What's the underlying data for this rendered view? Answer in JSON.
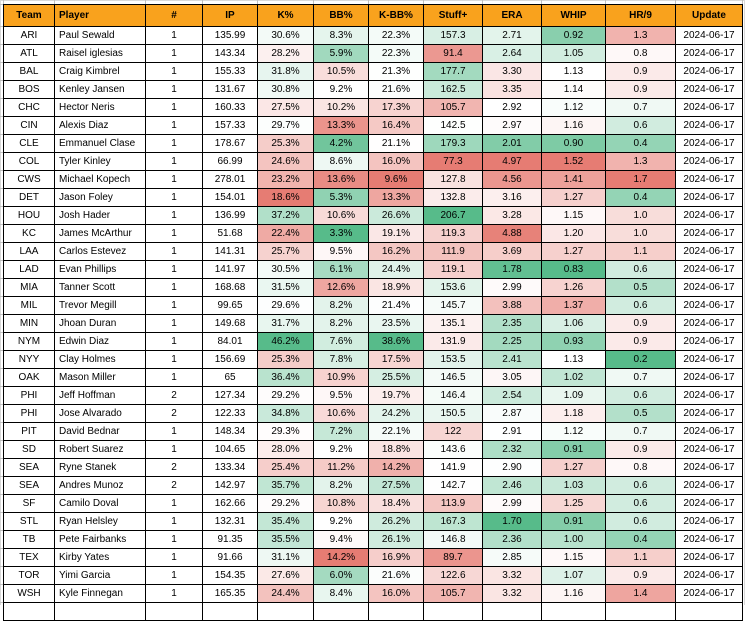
{
  "table": {
    "columns": [
      {
        "key": "team",
        "label": "Team"
      },
      {
        "key": "player",
        "label": "Player"
      },
      {
        "key": "num",
        "label": "#"
      },
      {
        "key": "ip",
        "label": "IP"
      },
      {
        "key": "k-pct",
        "label": "K%",
        "scale": "higher_better"
      },
      {
        "key": "bb-pct",
        "label": "BB%",
        "scale": "lower_better"
      },
      {
        "key": "k-bb-pct",
        "label": "K-BB%",
        "scale": "higher_better"
      },
      {
        "key": "stuff-plus",
        "label": "Stuff+",
        "scale": "higher_better"
      },
      {
        "key": "era",
        "label": "ERA",
        "scale": "lower_better"
      },
      {
        "key": "whip",
        "label": "WHIP",
        "scale": "lower_better"
      },
      {
        "key": "hr9",
        "label": "HR/9",
        "scale": "lower_better"
      },
      {
        "key": "update",
        "label": "Update"
      }
    ],
    "rows": [
      [
        "ARI",
        "Paul Sewald",
        "1",
        "135.99",
        "30.6%",
        "8.3%",
        "22.3%",
        "157.3",
        "2.71",
        "0.92",
        "1.3",
        "2024-06-17"
      ],
      [
        "ATL",
        "Raisel iglesias",
        "1",
        "143.34",
        "28.2%",
        "5.9%",
        "22.3%",
        "91.4",
        "2.64",
        "1.05",
        "0.8",
        "2024-06-17"
      ],
      [
        "BAL",
        "Craig Kimbrel",
        "1",
        "155.33",
        "31.8%",
        "10.5%",
        "21.3%",
        "177.7",
        "3.30",
        "1.13",
        "0.9",
        "2024-06-17"
      ],
      [
        "BOS",
        "Kenley Jansen",
        "1",
        "131.67",
        "30.8%",
        "9.2%",
        "21.6%",
        "162.5",
        "3.35",
        "1.14",
        "0.9",
        "2024-06-17"
      ],
      [
        "CHC",
        "Hector Neris",
        "1",
        "160.33",
        "27.5%",
        "10.2%",
        "17.3%",
        "105.7",
        "2.92",
        "1.12",
        "0.7",
        "2024-06-17"
      ],
      [
        "CIN",
        "Alexis Diaz",
        "1",
        "157.33",
        "29.7%",
        "13.3%",
        "16.4%",
        "142.5",
        "2.97",
        "1.16",
        "0.6",
        "2024-06-17"
      ],
      [
        "CLE",
        "Emmanuel Clase",
        "1",
        "178.67",
        "25.3%",
        "4.2%",
        "21.1%",
        "179.3",
        "2.01",
        "0.90",
        "0.4",
        "2024-06-17"
      ],
      [
        "COL",
        "Tyler Kinley",
        "1",
        "66.99",
        "24.6%",
        "8.6%",
        "16.0%",
        "77.3",
        "4.97",
        "1.52",
        "1.3",
        "2024-06-17"
      ],
      [
        "CWS",
        "Michael Kopech",
        "1",
        "278.01",
        "23.2%",
        "13.6%",
        "9.6%",
        "127.8",
        "4.56",
        "1.41",
        "1.7",
        "2024-06-17"
      ],
      [
        "DET",
        "Jason Foley",
        "1",
        "154.01",
        "18.6%",
        "5.3%",
        "13.3%",
        "132.8",
        "3.16",
        "1.27",
        "0.4",
        "2024-06-17"
      ],
      [
        "HOU",
        "Josh Hader",
        "1",
        "136.99",
        "37.2%",
        "10.6%",
        "26.6%",
        "206.7",
        "3.28",
        "1.15",
        "1.0",
        "2024-06-17"
      ],
      [
        "KC",
        "James McArthur",
        "1",
        "51.68",
        "22.4%",
        "3.3%",
        "19.1%",
        "119.3",
        "4.88",
        "1.20",
        "1.0",
        "2024-06-17"
      ],
      [
        "LAA",
        "Carlos Estevez",
        "1",
        "141.31",
        "25.7%",
        "9.5%",
        "16.2%",
        "111.9",
        "3.69",
        "1.27",
        "1.1",
        "2024-06-17"
      ],
      [
        "LAD",
        "Evan Phillips",
        "1",
        "141.97",
        "30.5%",
        "6.1%",
        "24.4%",
        "119.1",
        "1.78",
        "0.83",
        "0.6",
        "2024-06-17"
      ],
      [
        "MIA",
        "Tanner Scott",
        "1",
        "168.68",
        "31.5%",
        "12.6%",
        "18.9%",
        "153.6",
        "2.99",
        "1.26",
        "0.5",
        "2024-06-17"
      ],
      [
        "MIL",
        "Trevor Megill",
        "1",
        "99.65",
        "29.6%",
        "8.2%",
        "21.4%",
        "145.7",
        "3.88",
        "1.37",
        "0.6",
        "2024-06-17"
      ],
      [
        "MIN",
        "Jhoan Duran",
        "1",
        "149.68",
        "31.7%",
        "8.2%",
        "23.5%",
        "135.1",
        "2.35",
        "1.06",
        "0.9",
        "2024-06-17"
      ],
      [
        "NYM",
        "Edwin Diaz",
        "1",
        "84.01",
        "46.2%",
        "7.6%",
        "38.6%",
        "131.9",
        "2.25",
        "0.93",
        "0.9",
        "2024-06-17"
      ],
      [
        "NYY",
        "Clay Holmes",
        "1",
        "156.69",
        "25.3%",
        "7.8%",
        "17.5%",
        "153.5",
        "2.41",
        "1.13",
        "0.2",
        "2024-06-17"
      ],
      [
        "OAK",
        "Mason Miller",
        "1",
        "65",
        "36.4%",
        "10.9%",
        "25.5%",
        "146.5",
        "3.05",
        "1.02",
        "0.7",
        "2024-06-17"
      ],
      [
        "PHI",
        "Jeff Hoffman",
        "2",
        "127.34",
        "29.2%",
        "9.5%",
        "19.7%",
        "146.4",
        "2.54",
        "1.09",
        "0.6",
        "2024-06-17"
      ],
      [
        "PHI",
        "Jose Alvarado",
        "2",
        "122.33",
        "34.8%",
        "10.6%",
        "24.2%",
        "150.5",
        "2.87",
        "1.18",
        "0.5",
        "2024-06-17"
      ],
      [
        "PIT",
        "David Bednar",
        "1",
        "148.34",
        "29.3%",
        "7.2%",
        "22.1%",
        "122",
        "2.91",
        "1.12",
        "0.7",
        "2024-06-17"
      ],
      [
        "SD",
        "Robert Suarez",
        "1",
        "104.65",
        "28.0%",
        "9.2%",
        "18.8%",
        "143.6",
        "2.32",
        "0.91",
        "0.9",
        "2024-06-17"
      ],
      [
        "SEA",
        "Ryne Stanek",
        "2",
        "133.34",
        "25.4%",
        "11.2%",
        "14.2%",
        "141.9",
        "2.90",
        "1.27",
        "0.8",
        "2024-06-17"
      ],
      [
        "SEA",
        "Andres Munoz",
        "2",
        "142.97",
        "35.7%",
        "8.2%",
        "27.5%",
        "142.7",
        "2.46",
        "1.03",
        "0.6",
        "2024-06-17"
      ],
      [
        "SF",
        "Camilo Doval",
        "1",
        "162.66",
        "29.2%",
        "10.8%",
        "18.4%",
        "113.9",
        "2.99",
        "1.25",
        "0.6",
        "2024-06-17"
      ],
      [
        "STL",
        "Ryan Helsley",
        "1",
        "132.31",
        "35.4%",
        "9.2%",
        "26.2%",
        "167.3",
        "1.70",
        "0.91",
        "0.6",
        "2024-06-17"
      ],
      [
        "TB",
        "Pete Fairbanks",
        "1",
        "91.35",
        "35.5%",
        "9.4%",
        "26.1%",
        "146.8",
        "2.36",
        "1.00",
        "0.4",
        "2024-06-17"
      ],
      [
        "TEX",
        "Kirby Yates",
        "1",
        "91.66",
        "31.1%",
        "14.2%",
        "16.9%",
        "89.7",
        "2.85",
        "1.15",
        "1.1",
        "2024-06-17"
      ],
      [
        "TOR",
        "Yimi Garcia",
        "1",
        "154.35",
        "27.6%",
        "6.0%",
        "21.6%",
        "122.6",
        "3.32",
        "1.07",
        "0.9",
        "2024-06-17"
      ],
      [
        "WSH",
        "Kyle Finnegan",
        "1",
        "165.35",
        "24.4%",
        "8.4%",
        "16.0%",
        "105.7",
        "3.32",
        "1.16",
        "1.4",
        "2024-06-17"
      ]
    ]
  },
  "colors": {
    "header_bg": "#F9A21D",
    "header_text": "#000000",
    "cell_border": "#000000",
    "scale_good": "#57BB8A",
    "scale_bad": "#E67C73",
    "scale_mid": "#FFFFFF",
    "sheet_gridline": "#C0C0C0"
  }
}
